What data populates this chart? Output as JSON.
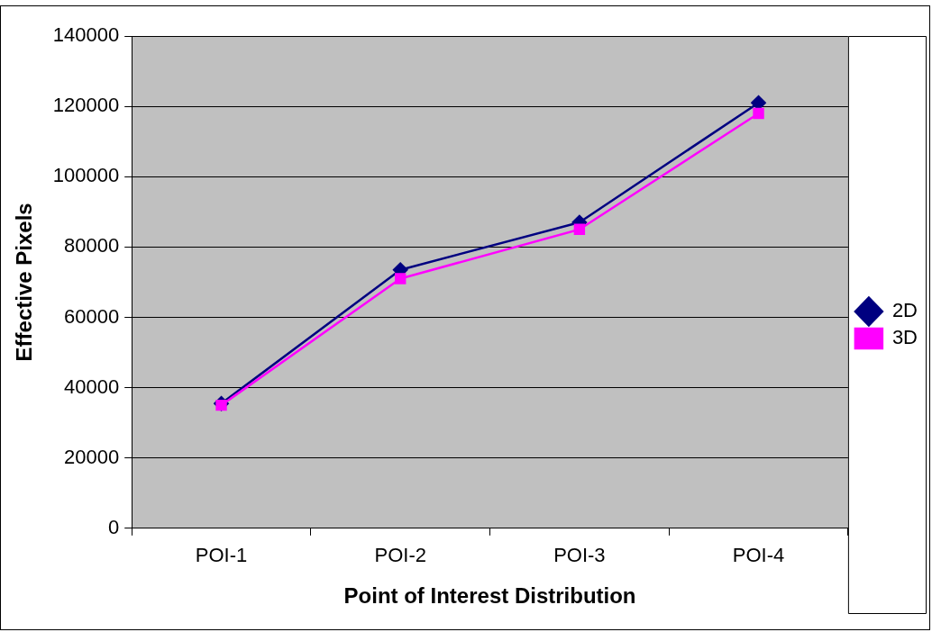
{
  "chart_data": {
    "type": "line",
    "xlabel": "Point of Interest Distribution",
    "ylabel": "Effective Pixels",
    "categories": [
      "POI-1",
      "POI-2",
      "POI-3",
      "POI-4"
    ],
    "series": [
      {
        "name": "2D",
        "color": "#000080",
        "marker": "diamond",
        "values": [
          35500,
          73500,
          87000,
          121000
        ]
      },
      {
        "name": "3D",
        "color": "#ff00ff",
        "marker": "square",
        "values": [
          35000,
          71000,
          85000,
          118000
        ]
      }
    ],
    "ylim": [
      0,
      140000
    ],
    "yticks": [
      0,
      20000,
      40000,
      60000,
      80000,
      100000,
      120000,
      140000
    ],
    "grid": "y",
    "legend": "right",
    "line_style": "solid"
  }
}
